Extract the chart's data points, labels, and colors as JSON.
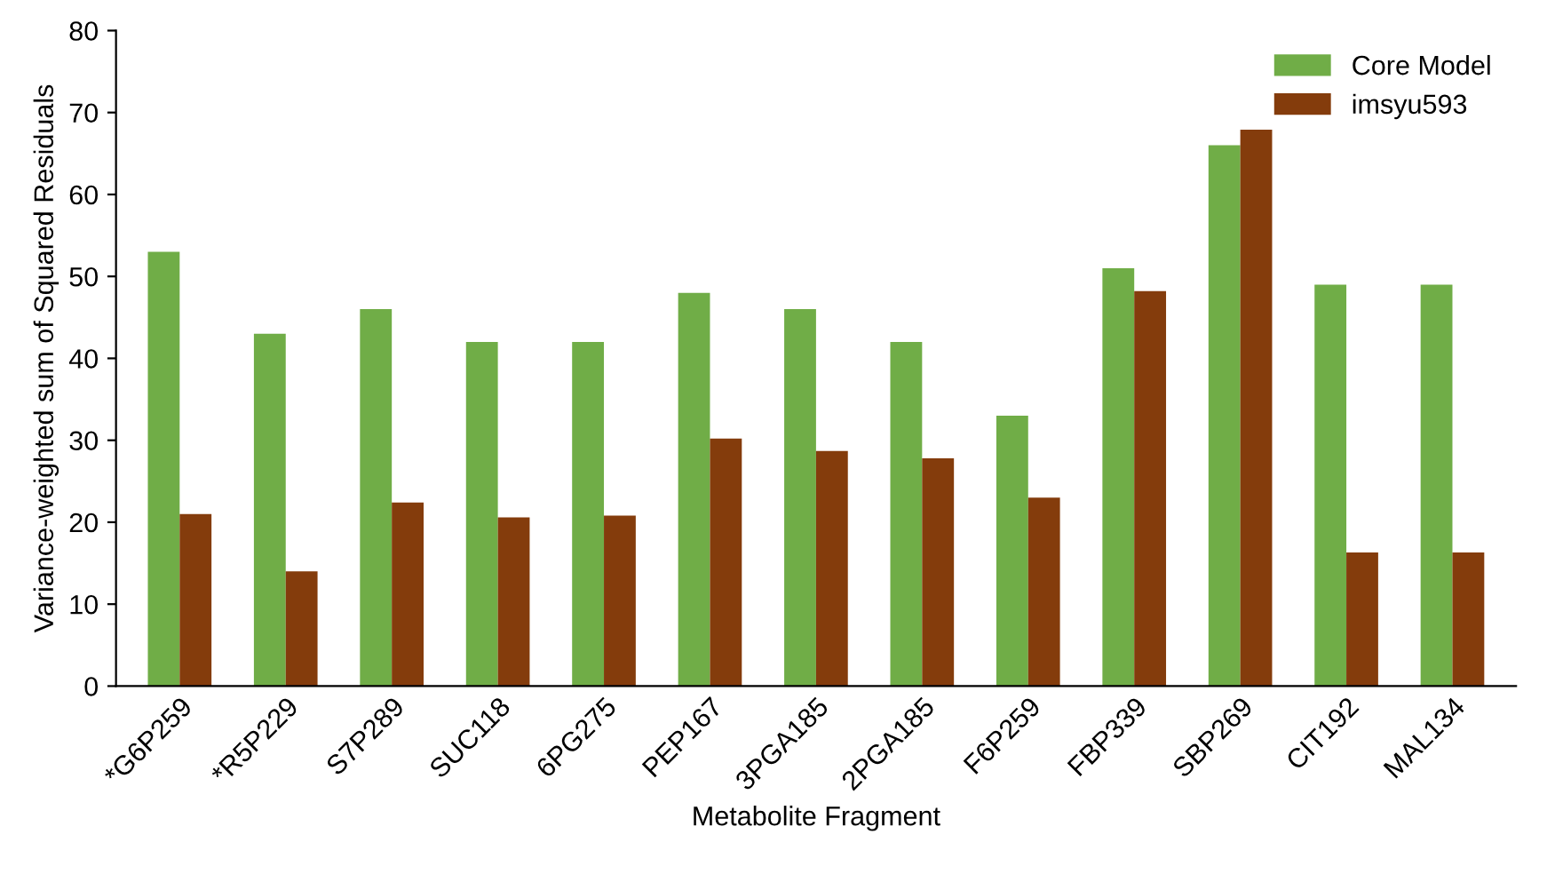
{
  "chart_data": {
    "type": "bar",
    "xlabel": "Metabolite Fragment",
    "ylabel": "Variance-weighted sum of Squared Residuals",
    "categories": [
      "*G6P259",
      "*R5P229",
      "S7P289",
      "SUC118",
      "6PG275",
      "PEP167",
      "3PGA185",
      "2PGA185",
      "F6P259",
      "FBP339",
      "SBP269",
      "CIT192",
      "MAL134"
    ],
    "series": [
      {
        "name": "Core Model",
        "color": "#70ad47",
        "values": [
          53,
          43,
          46,
          42,
          42,
          48,
          46,
          42,
          33,
          51,
          66,
          49,
          49
        ]
      },
      {
        "name": "imsyu593",
        "color": "#843c0c",
        "values": [
          21,
          14,
          22.4,
          20.6,
          20.8,
          30.2,
          28.7,
          27.8,
          23,
          48.2,
          67.9,
          16.3,
          16.3
        ]
      }
    ],
    "ylim": [
      0,
      80
    ],
    "yticks": [
      0,
      10,
      20,
      30,
      40,
      50,
      60,
      70,
      80
    ],
    "grid": false,
    "legend": "top right"
  }
}
